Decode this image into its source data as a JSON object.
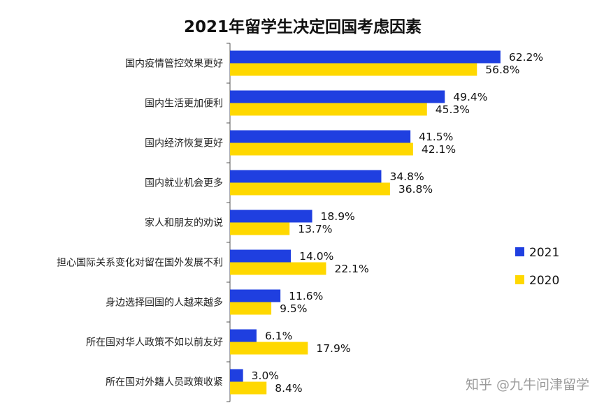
{
  "watermark": "知乎 @九牛问津留学",
  "chart_data": {
    "type": "bar",
    "orientation": "horizontal",
    "title": "2021年留学生决定回国考虑因素",
    "xlabel": "",
    "ylabel": "",
    "grid": false,
    "legend_position": "right",
    "xlim": [
      0,
      100
    ],
    "categories": [
      "国内疫情管控效果更好",
      "国内生活更加便利",
      "国内经济恢复更好",
      "国内就业机会更多",
      "家人和朋友的劝说",
      "担心国际关系变化对留在国外发展不利",
      "身边选择回国的人越来越多",
      "所在国对华人政策不如以前友好",
      "所在国对外籍人员政策收紧"
    ],
    "series": [
      {
        "name": "2021",
        "color": "#1f3fe0",
        "values": [
          62.2,
          49.4,
          41.5,
          34.8,
          18.9,
          14.0,
          11.6,
          6.1,
          3.0
        ],
        "labels": [
          "62.2%",
          "49.4%",
          "41.5%",
          "34.8%",
          "18.9%",
          "14.0%",
          "11.6%",
          "6.1%",
          "3.0%"
        ]
      },
      {
        "name": "2020",
        "color": "#ffd800",
        "values": [
          56.8,
          45.3,
          42.1,
          36.8,
          13.7,
          22.1,
          9.5,
          17.9,
          8.4
        ],
        "labels": [
          "56.8%",
          "45.3%",
          "42.1%",
          "36.8%",
          "13.7%",
          "22.1%",
          "9.5%",
          "17.9%",
          "8.4%"
        ]
      }
    ]
  }
}
